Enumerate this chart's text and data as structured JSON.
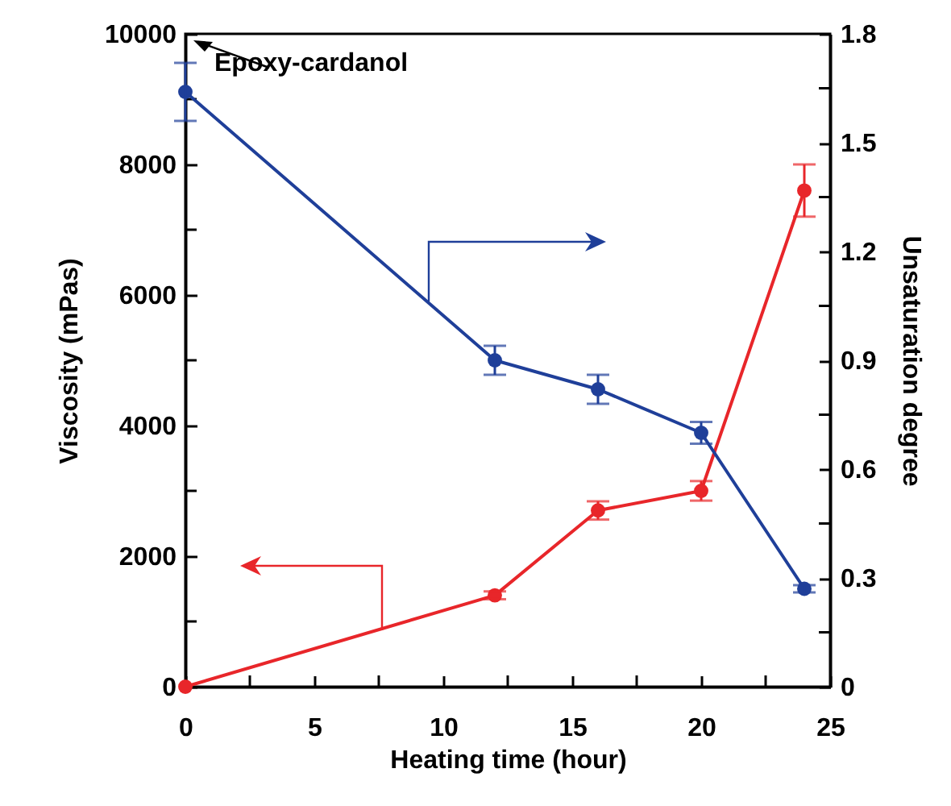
{
  "chart_data": {
    "type": "line",
    "xlabel": "Heating time (hour)",
    "ylabel": "Viscosity (mPas)",
    "y2label": "Unsaturation degree",
    "annotations": [
      "Epoxy-cardanol"
    ],
    "x": [
      0,
      12,
      16,
      20,
      24
    ],
    "xlim": [
      0,
      25
    ],
    "xticks": [
      0,
      {
        "value": 2.5,
        "label": null
      },
      5,
      {
        "value": 7.5,
        "label": null
      },
      10,
      {
        "value": 12.5,
        "label": null
      },
      15,
      {
        "value": 17.5,
        "label": null
      },
      20,
      {
        "value": 22.5,
        "label": null
      },
      25
    ],
    "ylim": [
      0,
      10000
    ],
    "yticks": [
      0,
      {
        "value": 1000,
        "label": null
      },
      2000,
      {
        "value": 3000,
        "label": null
      },
      4000,
      {
        "value": 5000,
        "label": null
      },
      6000,
      {
        "value": 7000,
        "label": null
      },
      8000,
      {
        "value": 9000,
        "label": null
      },
      10000
    ],
    "y2lim": [
      0,
      1.8
    ],
    "y2ticks": [
      0,
      {
        "value": 0.15,
        "label": null
      },
      0.3,
      {
        "value": 0.45,
        "label": null
      },
      0.6,
      {
        "value": 0.75,
        "label": null
      },
      0.9,
      {
        "value": 1.05,
        "label": null
      },
      1.2,
      {
        "value": 1.35,
        "label": null
      },
      1.5,
      {
        "value": 1.65,
        "label": null
      },
      1.8
    ],
    "marker": "circle",
    "line_style": "solid",
    "series": [
      {
        "color": "#e8262a",
        "values": [
          0,
          1400,
          2700,
          3000,
          7600
        ],
        "errors": [
          null,
          60,
          140,
          150,
          400
        ]
      },
      {
        "color": "#1f3f99",
        "axis": "y2",
        "values": [
          1.64,
          0.9,
          0.82,
          0.7,
          0.27
        ],
        "errors": [
          0.08,
          0.04,
          0.04,
          0.03,
          0.01
        ]
      }
    ]
  }
}
